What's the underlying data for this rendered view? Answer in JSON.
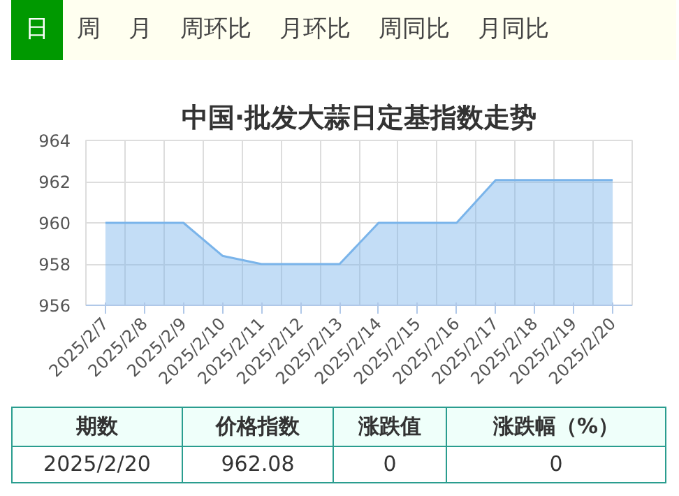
{
  "chart_data": {
    "type": "area",
    "title": "中国·批发大蒜日定基指数走势",
    "categories": [
      "2025/2/7",
      "2025/2/8",
      "2025/2/9",
      "2025/2/10",
      "2025/2/11",
      "2025/2/12",
      "2025/2/13",
      "2025/2/14",
      "2025/2/15",
      "2025/2/16",
      "2025/2/17",
      "2025/2/18",
      "2025/2/19",
      "2025/2/20"
    ],
    "values": [
      960,
      960,
      960,
      958.4,
      958,
      958,
      958,
      960,
      960,
      960,
      962.08,
      962.08,
      962.08,
      962.08
    ],
    "color": "#7ab4ea",
    "ylim": [
      956,
      964
    ],
    "yticks": [
      956,
      958,
      960,
      962,
      964
    ],
    "grid": true,
    "annotations": [
      "日",
      "周",
      "月",
      "周环比",
      "月环比",
      "周同比",
      "月同比",
      "期数",
      "价格指数",
      "涨跌值",
      "涨跌幅（%）",
      "2025/2/20",
      "962.08",
      "0",
      "0"
    ]
  }
}
